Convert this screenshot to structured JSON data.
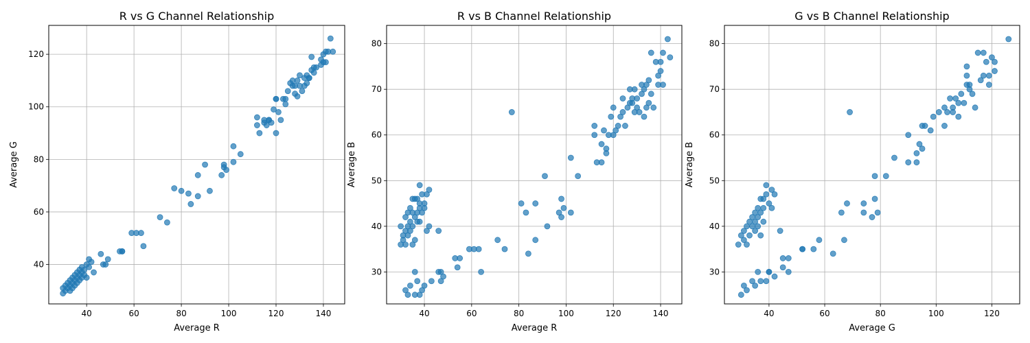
{
  "chart_data": [
    {
      "type": "scatter",
      "title": "R vs G Channel Relationship",
      "xlabel": "Average R",
      "ylabel": "Average G",
      "xlim": [
        24,
        149
      ],
      "ylim": [
        25,
        131
      ],
      "xticks": [
        40,
        60,
        80,
        100,
        120,
        140
      ],
      "yticks": [
        40,
        60,
        80,
        100,
        120
      ],
      "grid": true,
      "color": "#1f77b4",
      "x": [
        30,
        30,
        31,
        31,
        32,
        32,
        33,
        33,
        33,
        34,
        34,
        34,
        35,
        35,
        35,
        36,
        36,
        36,
        37,
        37,
        37,
        38,
        38,
        38,
        39,
        39,
        40,
        40,
        41,
        41,
        42,
        43,
        46,
        47,
        48,
        49,
        54,
        55,
        55,
        59,
        61,
        63,
        64,
        71,
        74,
        77,
        80,
        83,
        84,
        87,
        87,
        90,
        92,
        97,
        98,
        98,
        99,
        102,
        102,
        105,
        112,
        112,
        113,
        115,
        115,
        116,
        117,
        117,
        118,
        119,
        120,
        120,
        120,
        121,
        122,
        123,
        124,
        124,
        125,
        126,
        127,
        127,
        128,
        128,
        129,
        129,
        130,
        130,
        131,
        132,
        132,
        133,
        133,
        134,
        134,
        135,
        135,
        136,
        136,
        137,
        139,
        139,
        140,
        140,
        141,
        141,
        142,
        143,
        144
      ],
      "y": [
        29,
        31,
        32,
        30,
        33,
        31,
        34,
        30,
        32,
        35,
        33,
        31,
        36,
        34,
        32,
        37,
        35,
        33,
        38,
        36,
        34,
        39,
        37,
        35,
        38,
        36,
        40,
        35,
        42,
        39,
        41,
        37,
        44,
        40,
        40,
        42,
        45,
        45,
        45,
        52,
        52,
        52,
        47,
        58,
        56,
        69,
        68,
        67,
        63,
        74,
        66,
        78,
        68,
        74,
        78,
        77,
        76,
        85,
        79,
        82,
        96,
        93,
        90,
        94,
        95,
        93,
        95,
        95,
        94,
        99,
        103,
        103,
        90,
        98,
        95,
        103,
        101,
        103,
        106,
        109,
        110,
        108,
        105,
        108,
        104,
        110,
        112,
        108,
        106,
        108,
        111,
        109,
        112,
        111,
        111,
        119,
        114,
        115,
        113,
        115,
        118,
        116,
        120,
        117,
        121,
        117,
        121,
        126,
        121
      ]
    },
    {
      "type": "scatter",
      "title": "R vs B Channel Relationship",
      "xlabel": "Average R",
      "ylabel": "Average B",
      "xlim": [
        24,
        149
      ],
      "ylim": [
        23,
        84
      ],
      "xticks": [
        40,
        60,
        80,
        100,
        120,
        140
      ],
      "yticks": [
        30,
        40,
        50,
        60,
        70,
        80
      ],
      "grid": true,
      "color": "#1f77b4",
      "x": [
        30,
        30,
        31,
        31,
        32,
        32,
        32,
        33,
        33,
        33,
        34,
        34,
        34,
        35,
        35,
        35,
        35,
        36,
        36,
        36,
        37,
        37,
        37,
        38,
        38,
        38,
        38,
        39,
        39,
        40,
        40,
        41,
        41,
        42,
        42,
        32,
        33,
        34,
        36,
        36,
        37,
        38,
        39,
        40,
        43,
        46,
        46,
        47,
        47,
        48,
        53,
        54,
        55,
        59,
        61,
        63,
        64,
        71,
        74,
        77,
        81,
        83,
        84,
        87,
        87,
        91,
        92,
        97,
        98,
        98,
        99,
        102,
        102,
        105,
        112,
        112,
        113,
        115,
        115,
        116,
        117,
        117,
        118,
        119,
        120,
        120,
        121,
        122,
        123,
        124,
        124,
        125,
        126,
        127,
        127,
        128,
        128,
        129,
        129,
        130,
        130,
        131,
        132,
        132,
        133,
        133,
        134,
        134,
        135,
        135,
        136,
        136,
        137,
        138,
        139,
        139,
        140,
        140,
        141,
        141,
        143,
        144
      ],
      "y": [
        36,
        40,
        38,
        37,
        42,
        39,
        36,
        43,
        40,
        38,
        44,
        41,
        39,
        46,
        43,
        40,
        36,
        46,
        42,
        37,
        46,
        43,
        41,
        49,
        45,
        44,
        41,
        47,
        43,
        45,
        44,
        47,
        39,
        48,
        40,
        26,
        25,
        27,
        25,
        30,
        28,
        25,
        26,
        27,
        28,
        30,
        39,
        28,
        30,
        29,
        33,
        31,
        33,
        35,
        35,
        35,
        30,
        37,
        35,
        65,
        45,
        43,
        34,
        45,
        37,
        51,
        40,
        43,
        42,
        46,
        44,
        55,
        43,
        51,
        62,
        60,
        54,
        58,
        54,
        61,
        56,
        57,
        60,
        64,
        60,
        66,
        61,
        62,
        64,
        68,
        65,
        62,
        66,
        67,
        70,
        67,
        68,
        65,
        70,
        66,
        68,
        65,
        71,
        69,
        70,
        64,
        71,
        66,
        72,
        67,
        78,
        69,
        66,
        76,
        73,
        71,
        76,
        74,
        78,
        71,
        81,
        77
      ]
    },
    {
      "type": "scatter",
      "title": "G vs B Channel Relationship",
      "xlabel": "Average G",
      "ylabel": "Average B",
      "xlim": [
        24,
        130
      ],
      "ylim": [
        23,
        84
      ],
      "xticks": [
        20,
        40,
        60,
        80,
        100,
        120
      ],
      "yticks": [
        30,
        40,
        50,
        60,
        70,
        80
      ],
      "grid": true,
      "color": "#1f77b4",
      "x": [
        29,
        30,
        31,
        31,
        32,
        32,
        33,
        33,
        34,
        34,
        35,
        35,
        35,
        36,
        36,
        36,
        37,
        37,
        37,
        38,
        38,
        38,
        39,
        39,
        40,
        40,
        41,
        41,
        42,
        44,
        31,
        30,
        32,
        34,
        35,
        36,
        37,
        39,
        40,
        42,
        45,
        45,
        47,
        47,
        52,
        52,
        56,
        58,
        63,
        66,
        67,
        68,
        69,
        74,
        74,
        77,
        78,
        78,
        79,
        82,
        85,
        90,
        90,
        93,
        93,
        94,
        95,
        95,
        96,
        98,
        99,
        101,
        103,
        103,
        104,
        105,
        106,
        106,
        107,
        108,
        108,
        109,
        110,
        111,
        111,
        111,
        112,
        112,
        113,
        114,
        115,
        116,
        117,
        117,
        118,
        119,
        119,
        120,
        121,
        121,
        126
      ],
      "y": [
        36,
        38,
        37,
        39,
        40,
        36,
        41,
        38,
        42,
        40,
        43,
        41,
        39,
        44,
        42,
        40,
        46,
        43,
        38,
        46,
        44,
        41,
        49,
        47,
        45,
        30,
        48,
        44,
        47,
        39,
        27,
        25,
        26,
        28,
        27,
        30,
        28,
        28,
        30,
        29,
        33,
        31,
        33,
        30,
        35,
        35,
        35,
        37,
        34,
        43,
        37,
        45,
        65,
        43,
        45,
        42,
        51,
        46,
        43,
        51,
        55,
        54,
        60,
        56,
        54,
        58,
        57,
        62,
        62,
        61,
        64,
        65,
        62,
        66,
        65,
        68,
        66,
        65,
        68,
        67,
        64,
        69,
        67,
        75,
        71,
        73,
        71,
        70,
        69,
        66,
        78,
        72,
        78,
        73,
        76,
        71,
        73,
        77,
        76,
        74,
        81
      ]
    }
  ]
}
